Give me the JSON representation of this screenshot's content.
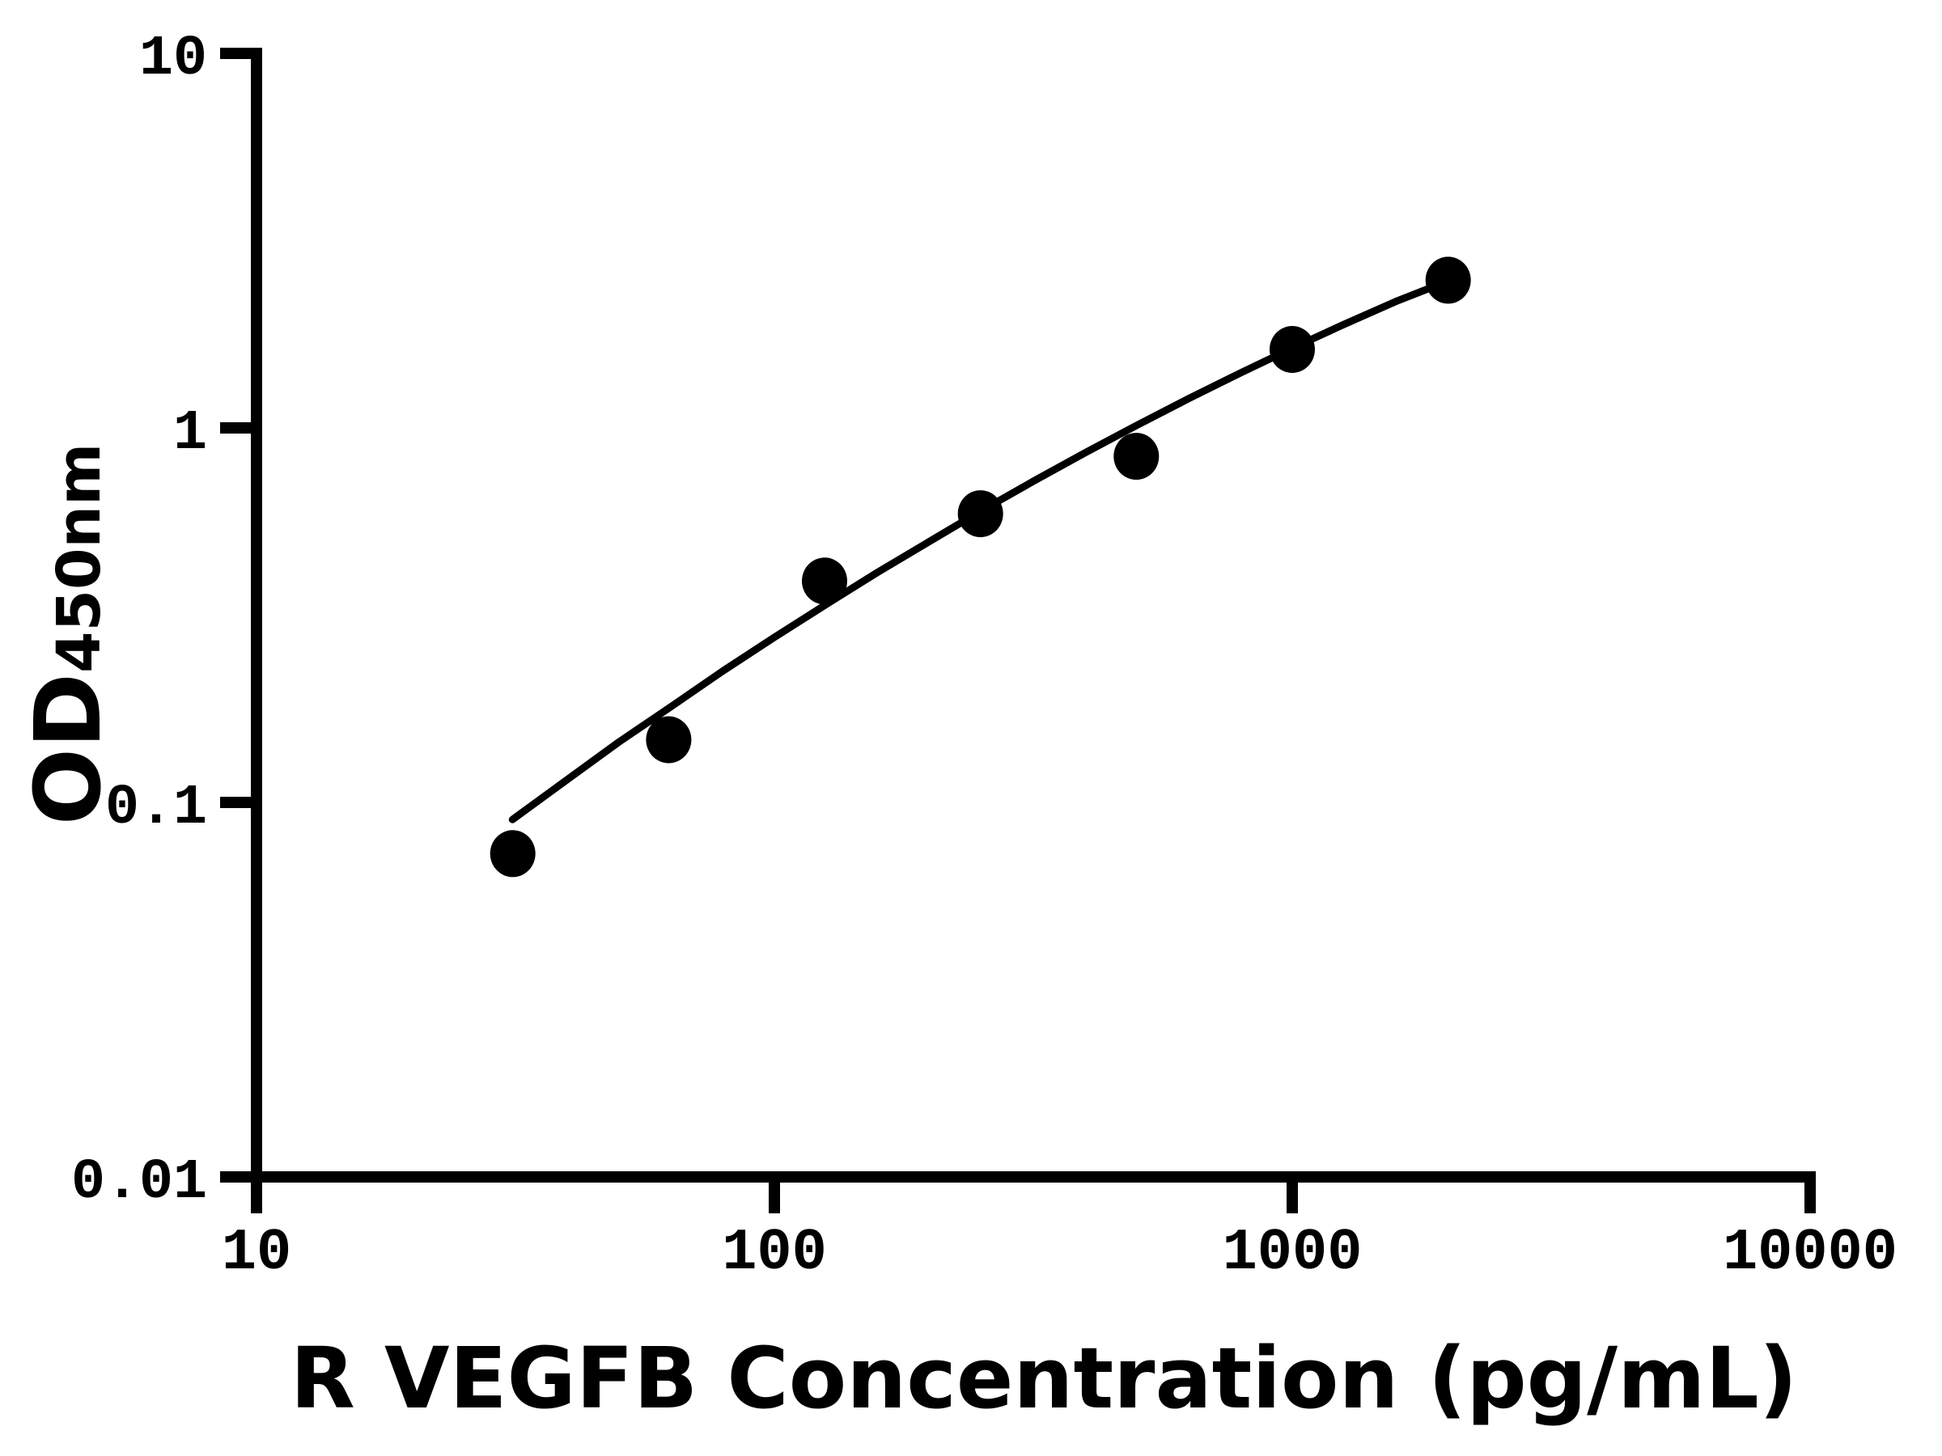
{
  "figure": {
    "background_color": "#ffffff",
    "ink_color": "#000000"
  },
  "chart_data": {
    "type": "scatter",
    "title": "",
    "xlabel": "R VEGFB Concentration (pg/mL)",
    "ylabel": "OD",
    "ylabel_subscript": "450nm",
    "x_scale": "log",
    "y_scale": "log",
    "xlim": [
      10,
      10000
    ],
    "ylim": [
      0.01,
      10
    ],
    "grid": "off",
    "legend": "none",
    "x_ticks": [
      {
        "value": 10,
        "label": "10"
      },
      {
        "value": 100,
        "label": "100"
      },
      {
        "value": 1000,
        "label": "1000"
      },
      {
        "value": 10000,
        "label": "10000"
      }
    ],
    "y_ticks": [
      {
        "value": 10,
        "label": "10"
      },
      {
        "value": 1,
        "label": "1"
      },
      {
        "value": 0.1,
        "label": "0.1"
      },
      {
        "value": 0.01,
        "label": "0.01"
      }
    ],
    "series": [
      {
        "name": "standard-curve-points",
        "marker": "filled-circle",
        "color": "#000000",
        "points": [
          {
            "x": 31.25,
            "y": 0.073
          },
          {
            "x": 62.5,
            "y": 0.147
          },
          {
            "x": 125,
            "y": 0.39
          },
          {
            "x": 250,
            "y": 0.59
          },
          {
            "x": 500,
            "y": 0.84
          },
          {
            "x": 1000,
            "y": 1.62
          },
          {
            "x": 2000,
            "y": 2.48
          }
        ]
      }
    ],
    "fit_curve": {
      "name": "fitted-standard-curve",
      "color": "#000000",
      "points": [
        [
          31.2,
          0.09
        ],
        [
          39.8,
          0.115
        ],
        [
          50.1,
          0.145
        ],
        [
          63.1,
          0.18
        ],
        [
          79.4,
          0.224
        ],
        [
          100,
          0.276
        ],
        [
          126,
          0.338
        ],
        [
          158,
          0.411
        ],
        [
          200,
          0.499
        ],
        [
          251,
          0.601
        ],
        [
          316,
          0.72
        ],
        [
          398,
          0.858
        ],
        [
          501,
          1.016
        ],
        [
          631,
          1.197
        ],
        [
          794,
          1.402
        ],
        [
          1000,
          1.633
        ],
        [
          1259,
          1.89
        ],
        [
          1585,
          2.176
        ],
        [
          2017,
          2.48
        ]
      ]
    }
  }
}
